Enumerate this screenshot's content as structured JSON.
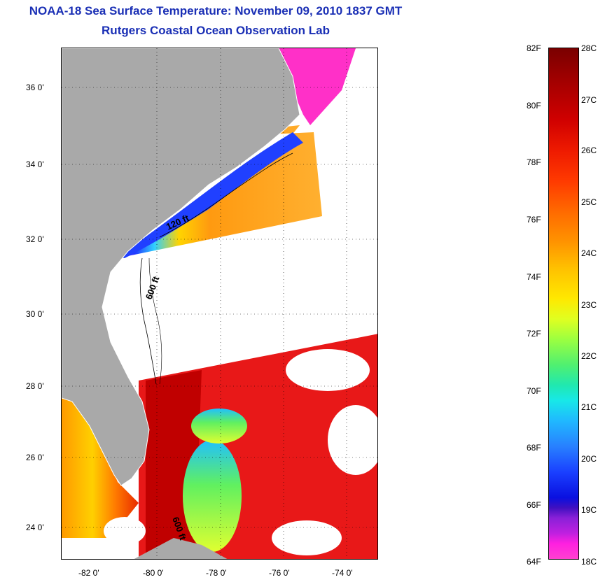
{
  "header": {
    "title": "NOAA-18 Sea Surface Temperature:  November 09, 2010 1837 GMT",
    "subtitle": "Rutgers Coastal Ocean Observation Lab"
  },
  "map": {
    "y_ticks": [
      "36 0'",
      "34 0'",
      "32 0'",
      "30 0'",
      "28 0'",
      "26 0'",
      "24 0'"
    ],
    "x_ticks": [
      "-82 0'",
      "-80 0'",
      "-78 0'",
      "-76 0'",
      "-74 0'"
    ],
    "contour_labels": [
      "120 ft",
      "600 ft",
      "600 ft"
    ],
    "colors": {
      "land": "#a9a9a9",
      "no_data": "#ffffff",
      "warm": "#e81010",
      "hot": "#c00000"
    }
  },
  "colorbar": {
    "fahrenheit": [
      "82F",
      "80F",
      "78F",
      "76F",
      "74F",
      "72F",
      "70F",
      "68F",
      "66F",
      "64F"
    ],
    "celsius": [
      "28C",
      "27C",
      "26C",
      "25C",
      "24C",
      "23C",
      "22C",
      "21C",
      "20C",
      "19C",
      "18C"
    ]
  }
}
